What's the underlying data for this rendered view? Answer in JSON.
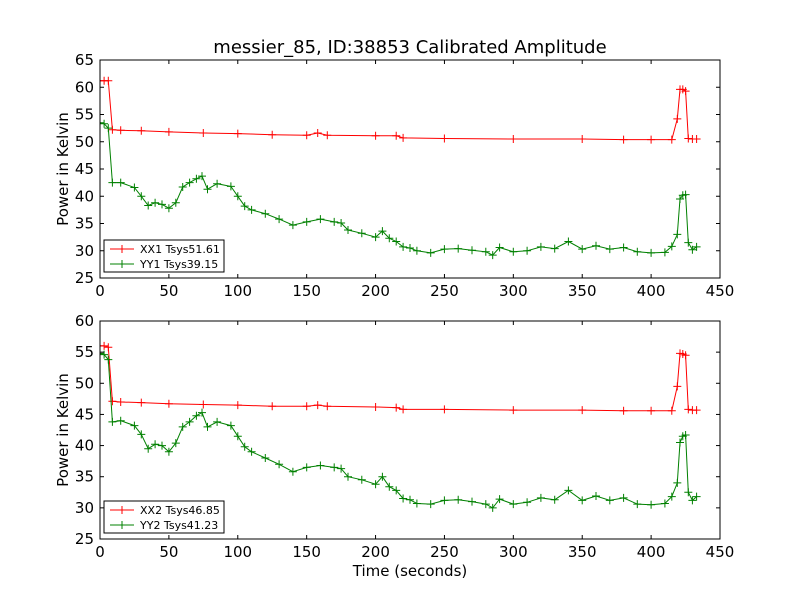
{
  "title": "messier_85, ID:38853 Calibrated Amplitude",
  "chart_data": [
    {
      "type": "line",
      "title": "messier_85, ID:38853 Calibrated Amplitude",
      "ylabel": "Power in Kelvin",
      "xlabel": "",
      "xlim": [
        0,
        450
      ],
      "ylim": [
        25,
        65
      ],
      "xticks": [
        "0",
        "50",
        "100",
        "150",
        "200",
        "250",
        "300",
        "350",
        "400",
        "450"
      ],
      "yticks": [
        "25",
        "30",
        "35",
        "40",
        "45",
        "50",
        "55",
        "60",
        "65"
      ],
      "grid": false,
      "legend_position": "lower-left",
      "marker": "+",
      "series": [
        {
          "name": "XX1 Tsys51.61",
          "color": "#ff0000",
          "x": [
            0,
            3,
            6,
            9,
            15,
            30,
            50,
            75,
            100,
            125,
            150,
            158,
            165,
            200,
            215,
            220,
            250,
            300,
            350,
            380,
            400,
            415,
            419,
            421,
            423,
            425,
            427,
            430,
            433
          ],
          "y": [
            61.2,
            61.2,
            61.2,
            52.2,
            52.1,
            52.0,
            51.8,
            51.6,
            51.5,
            51.3,
            51.2,
            51.6,
            51.2,
            51.1,
            51.1,
            50.7,
            50.6,
            50.5,
            50.5,
            50.4,
            50.4,
            50.4,
            54.2,
            59.6,
            59.6,
            59.3,
            50.6,
            50.5,
            50.5
          ]
        },
        {
          "name": "YY1 Tsys39.15",
          "color": "#008000",
          "x": [
            0,
            3,
            6,
            9,
            15,
            25,
            30,
            35,
            40,
            45,
            50,
            55,
            60,
            65,
            70,
            74,
            78,
            85,
            95,
            100,
            105,
            110,
            120,
            130,
            140,
            150,
            160,
            170,
            175,
            180,
            190,
            200,
            205,
            210,
            215,
            220,
            225,
            230,
            240,
            250,
            260,
            270,
            280,
            285,
            290,
            300,
            310,
            320,
            330,
            340,
            350,
            360,
            370,
            380,
            390,
            400,
            410,
            415,
            419,
            421,
            423,
            425,
            427,
            430,
            433
          ],
          "y": [
            53.5,
            53.3,
            52.5,
            42.5,
            42.5,
            41.6,
            40.0,
            38.3,
            38.8,
            38.5,
            37.8,
            38.8,
            41.7,
            42.5,
            43.2,
            43.7,
            41.3,
            42.3,
            41.8,
            40.0,
            38.2,
            37.5,
            36.8,
            35.8,
            34.7,
            35.3,
            35.8,
            35.3,
            35.1,
            33.8,
            33.2,
            32.5,
            33.6,
            32.3,
            31.7,
            30.7,
            30.5,
            30.0,
            29.6,
            30.3,
            30.4,
            30.1,
            29.8,
            29.2,
            30.6,
            29.8,
            30.0,
            30.7,
            30.4,
            31.7,
            30.3,
            30.9,
            30.3,
            30.6,
            29.8,
            29.6,
            29.7,
            30.8,
            33.0,
            39.5,
            40.2,
            40.3,
            31.5,
            30.2,
            30.7
          ]
        }
      ]
    },
    {
      "type": "line",
      "title": "",
      "ylabel": "Power in Kelvin",
      "xlabel": "Time (seconds)",
      "xlim": [
        0,
        450
      ],
      "ylim": [
        25,
        60
      ],
      "xticks": [
        "0",
        "50",
        "100",
        "150",
        "200",
        "250",
        "300",
        "350",
        "400",
        "450"
      ],
      "yticks": [
        "25",
        "30",
        "35",
        "40",
        "45",
        "50",
        "55",
        "60"
      ],
      "grid": false,
      "legend_position": "lower-left",
      "marker": "+",
      "series": [
        {
          "name": "XX2 Tsys46.85",
          "color": "#ff0000",
          "x": [
            0,
            3,
            6,
            9,
            15,
            30,
            50,
            75,
            100,
            125,
            150,
            158,
            165,
            200,
            215,
            220,
            250,
            300,
            350,
            380,
            400,
            415,
            419,
            421,
            423,
            425,
            427,
            430,
            433
          ],
          "y": [
            56.0,
            56.0,
            55.8,
            47.1,
            47.0,
            46.9,
            46.7,
            46.6,
            46.5,
            46.3,
            46.3,
            46.5,
            46.3,
            46.2,
            46.1,
            45.8,
            45.8,
            45.7,
            45.7,
            45.6,
            45.6,
            45.6,
            49.5,
            54.8,
            54.7,
            54.5,
            45.8,
            45.7,
            45.7
          ]
        },
        {
          "name": "YY2 Tsys41.23",
          "color": "#008000",
          "x": [
            0,
            3,
            6,
            9,
            15,
            25,
            30,
            35,
            40,
            45,
            50,
            55,
            60,
            65,
            70,
            74,
            78,
            85,
            95,
            100,
            105,
            110,
            120,
            130,
            140,
            150,
            160,
            170,
            175,
            180,
            190,
            200,
            205,
            210,
            215,
            220,
            225,
            230,
            240,
            250,
            260,
            270,
            280,
            285,
            290,
            300,
            310,
            320,
            330,
            340,
            350,
            360,
            370,
            380,
            390,
            400,
            410,
            415,
            419,
            421,
            423,
            425,
            427,
            430,
            433
          ],
          "y": [
            54.8,
            54.6,
            53.8,
            43.8,
            44.0,
            43.2,
            41.8,
            39.5,
            40.2,
            40.0,
            39.0,
            40.4,
            43.0,
            43.8,
            44.8,
            45.3,
            43.0,
            43.8,
            43.2,
            41.5,
            39.8,
            39.0,
            38.0,
            37.0,
            35.8,
            36.5,
            36.8,
            36.5,
            36.3,
            35.0,
            34.5,
            33.8,
            35.0,
            33.4,
            32.8,
            31.5,
            31.3,
            30.7,
            30.6,
            31.2,
            31.3,
            31.0,
            30.6,
            30.0,
            31.4,
            30.6,
            30.9,
            31.6,
            31.3,
            32.8,
            31.2,
            31.9,
            31.2,
            31.6,
            30.6,
            30.5,
            30.7,
            31.8,
            34.0,
            40.5,
            41.5,
            41.7,
            32.5,
            31.2,
            31.8
          ]
        }
      ]
    }
  ]
}
